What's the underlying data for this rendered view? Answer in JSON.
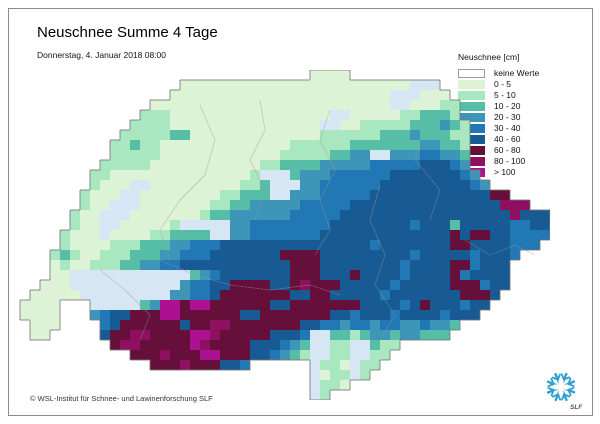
{
  "header": {
    "title": "Neuschnee Summe 4 Tage",
    "subtitle": "Donnerstag, 4. Januar 2018 08:00"
  },
  "legend": {
    "title": "Neuschnee [cm]",
    "items": [
      {
        "label": "keine Werte",
        "color": "#ffffff"
      },
      {
        "label": "0 - 5",
        "color": "#ddf3d6"
      },
      {
        "label": "5 - 10",
        "color": "#a9e7c0"
      },
      {
        "label": "10 - 20",
        "color": "#56bea6"
      },
      {
        "label": "20 - 30",
        "color": "#3d96b8"
      },
      {
        "label": "30 - 40",
        "color": "#2277b5"
      },
      {
        "label": "40 - 60",
        "color": "#175a94"
      },
      {
        "label": "60 - 80",
        "color": "#650f3a"
      },
      {
        "label": "80 - 100",
        "color": "#8f1060"
      },
      {
        "label": "> 100",
        "color": "#ab1190"
      }
    ]
  },
  "footer": {
    "copyright": "© WSL-Institut für Schnee- und Lawinenforschung SLF",
    "logo_text": "SLF",
    "logo_color": "#2f9fd0"
  },
  "map": {
    "cell_size": 10,
    "outline_color": "#777777",
    "inner_line_color": "#999999",
    "palette": {
      "1": "#ddf3d6",
      "2": "#a9e7c0",
      "3": "#56bea6",
      "4": "#3d96b8",
      "5": "#2277b5",
      "6": "#175a94",
      "7": "#650f3a",
      "8": "#8f1060",
      "9": "#ab1190",
      "L": "#d7e6f5"
    },
    "grid": [
      "..............................1111....................",
      ".................11111111111111111111111LLL...........",
      "................1111111111111111111111LLL111..........",
      "..............111111111111111111111111LL11122.........",
      ".............2221111111111111111LL11111223332.........",
      "............2222111111111111111LL1122222333432........",
      "...........22222331111111111111222222333433322........",
      "..........223221111111111111222222333333344332........",
      "..........22222111111111111222223344LL44455443........",
      ".........2222211111111111223333444445555566654........",
      "........22111111111111112LLL3444555555666666654.......",
      "........2111LL111111111223LLL4455555566666666654......",
      ".......2111LL1111111122333LL4445555566666666666677....",
      ".......211LLL111111122334444455555666666666666666888..",
      "......211LLL111111123344444455555666666666666666668666",
      "......211LL111112LLLLL44555555556666666656663666665566",
      ".....2111L1111223333LL44555555566666666666667677665555",
      ".....211112223334455566666666666666656666666776666555.",
      "....23211222333445556666666777766666666656666656665...",
      "....1211222334455666666666667776666666656666775666....",
      "....11LLLLLLLLLLLL34566666667776667666656666756666....",
      "...111LLLLLLLLLLL455667777667877766666566666777566....",
      "..11111LLLLLLLLL445567777777667766666566666667776.....",
      ".1111...LLLLL34997997777776677777776666567666566......",
      ".1111...456677799777777667777777665666566665666.......",
      "..111....567777776778877777776655455455445443.........",
      "..11.....677887777998777776665LL332344344333..........",
      "..........78877777987777666543LL22LL322...............",
      "............777877799777665432LL22LL22................",
      "..............7778777665......L221L22.................",
      "..............................L122L2..................",
      "..............................L221....................",
      "..............................L2......................"
    ],
    "overlays": [
      [
        [
          190,
          35
        ],
        [
          205,
          70
        ],
        [
          195,
          105
        ],
        [
          170,
          130
        ],
        [
          150,
          160
        ],
        [
          160,
          190
        ]
      ],
      [
        [
          250,
          30
        ],
        [
          255,
          60
        ],
        [
          240,
          90
        ],
        [
          255,
          120
        ],
        [
          245,
          150
        ]
      ],
      [
        [
          320,
          40
        ],
        [
          310,
          70
        ],
        [
          325,
          100
        ],
        [
          310,
          130
        ],
        [
          320,
          160
        ],
        [
          305,
          185
        ]
      ],
      [
        [
          370,
          115
        ],
        [
          360,
          150
        ],
        [
          375,
          185
        ],
        [
          365,
          215
        ],
        [
          385,
          245
        ],
        [
          370,
          270
        ]
      ],
      [
        [
          150,
          190
        ],
        [
          185,
          205
        ],
        [
          220,
          215
        ],
        [
          260,
          220
        ],
        [
          300,
          215
        ],
        [
          330,
          225
        ]
      ],
      [
        [
          90,
          200
        ],
        [
          115,
          220
        ],
        [
          140,
          245
        ],
        [
          130,
          270
        ]
      ],
      [
        [
          415,
          60
        ],
        [
          405,
          90
        ],
        [
          430,
          120
        ],
        [
          420,
          150
        ]
      ],
      [
        [
          455,
          170
        ],
        [
          480,
          185
        ],
        [
          505,
          175
        ],
        [
          525,
          185
        ]
      ]
    ]
  }
}
